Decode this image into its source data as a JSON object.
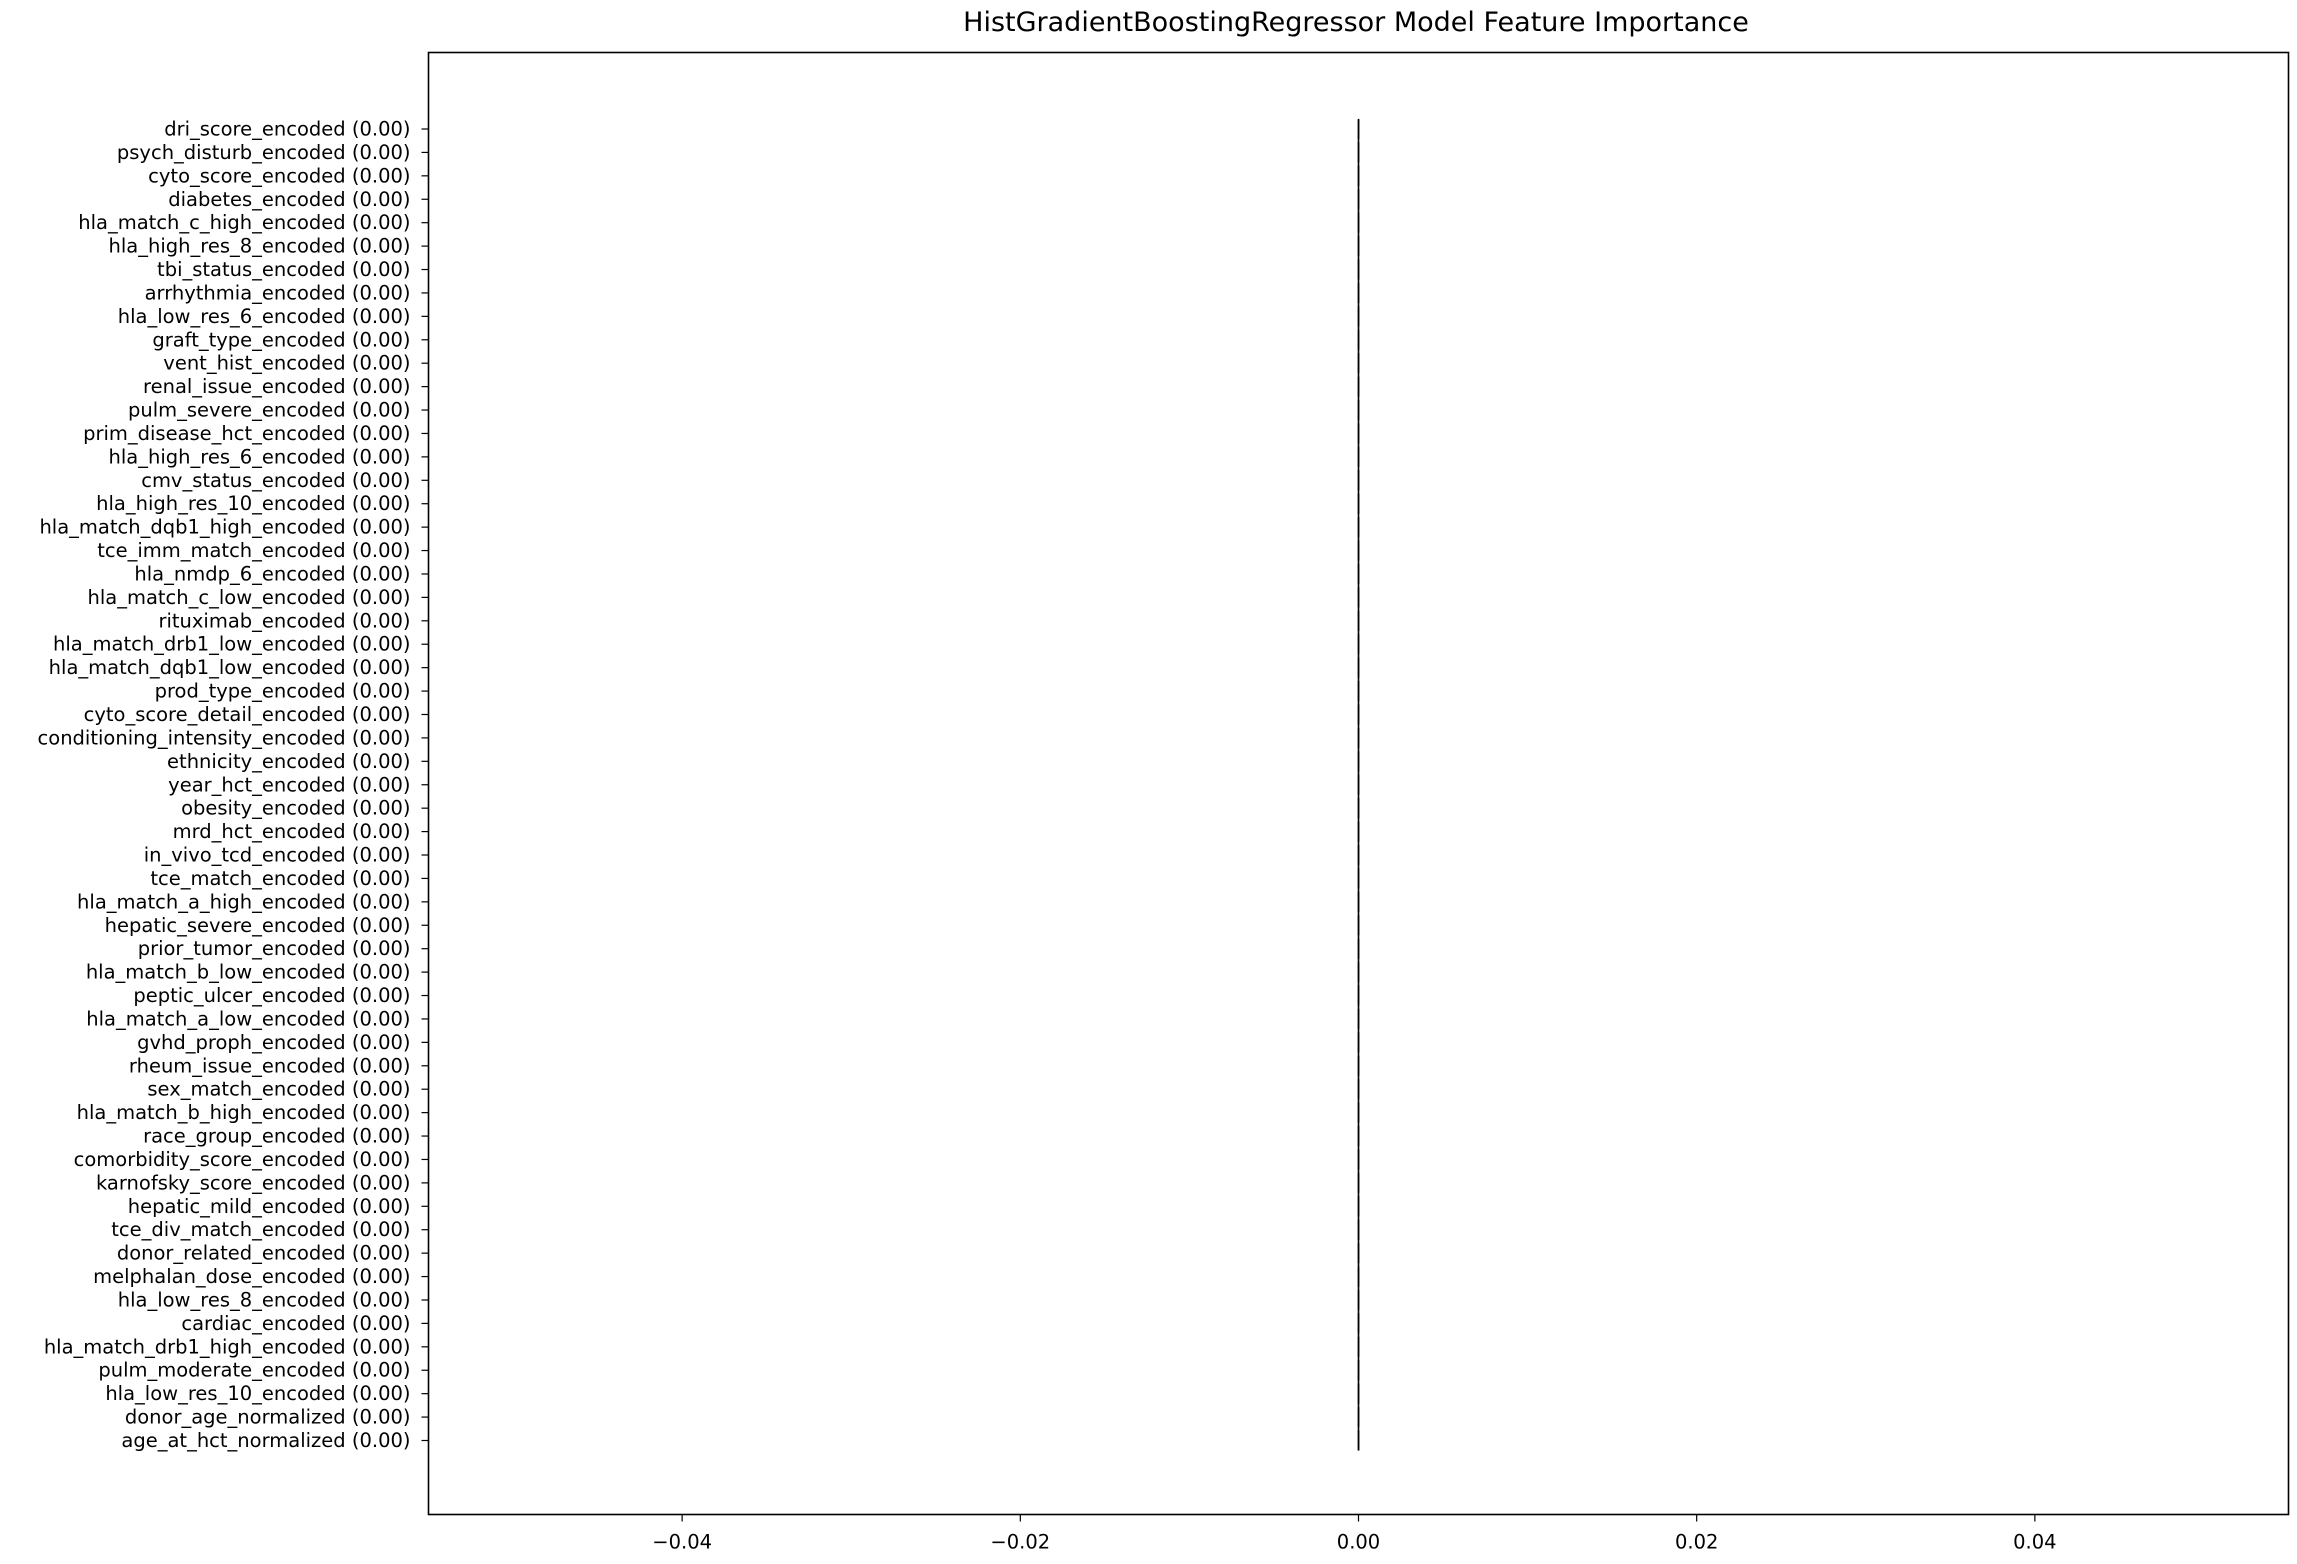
{
  "chart_data": {
    "type": "bar",
    "orientation": "horizontal",
    "title": "HistGradientBoostingRegressor Model Feature Importance",
    "xlabel": "",
    "ylabel": "",
    "xlim": [
      -0.055,
      0.055
    ],
    "xticks": [
      {
        "value": -0.04,
        "label": "−0.04"
      },
      {
        "value": -0.02,
        "label": "−0.02"
      },
      {
        "value": 0.0,
        "label": "0.00"
      },
      {
        "value": 0.02,
        "label": "0.02"
      },
      {
        "value": 0.04,
        "label": "0.04"
      }
    ],
    "grid": false,
    "bar_color": "#1f77b4",
    "edge_color": "#000000",
    "categories": [
      "dri_score_encoded (0.00)",
      "psych_disturb_encoded (0.00)",
      "cyto_score_encoded (0.00)",
      "diabetes_encoded (0.00)",
      "hla_match_c_high_encoded (0.00)",
      "hla_high_res_8_encoded (0.00)",
      "tbi_status_encoded (0.00)",
      "arrhythmia_encoded (0.00)",
      "hla_low_res_6_encoded (0.00)",
      "graft_type_encoded (0.00)",
      "vent_hist_encoded (0.00)",
      "renal_issue_encoded (0.00)",
      "pulm_severe_encoded (0.00)",
      "prim_disease_hct_encoded (0.00)",
      "hla_high_res_6_encoded (0.00)",
      "cmv_status_encoded (0.00)",
      "hla_high_res_10_encoded (0.00)",
      "hla_match_dqb1_high_encoded (0.00)",
      "tce_imm_match_encoded (0.00)",
      "hla_nmdp_6_encoded (0.00)",
      "hla_match_c_low_encoded (0.00)",
      "rituximab_encoded (0.00)",
      "hla_match_drb1_low_encoded (0.00)",
      "hla_match_dqb1_low_encoded (0.00)",
      "prod_type_encoded (0.00)",
      "cyto_score_detail_encoded (0.00)",
      "conditioning_intensity_encoded (0.00)",
      "ethnicity_encoded (0.00)",
      "year_hct_encoded (0.00)",
      "obesity_encoded (0.00)",
      "mrd_hct_encoded (0.00)",
      "in_vivo_tcd_encoded (0.00)",
      "tce_match_encoded (0.00)",
      "hla_match_a_high_encoded (0.00)",
      "hepatic_severe_encoded (0.00)",
      "prior_tumor_encoded (0.00)",
      "hla_match_b_low_encoded (0.00)",
      "peptic_ulcer_encoded (0.00)",
      "hla_match_a_low_encoded (0.00)",
      "gvhd_proph_encoded (0.00)",
      "rheum_issue_encoded (0.00)",
      "sex_match_encoded (0.00)",
      "hla_match_b_high_encoded (0.00)",
      "race_group_encoded (0.00)",
      "comorbidity_score_encoded (0.00)",
      "karnofsky_score_encoded (0.00)",
      "hepatic_mild_encoded (0.00)",
      "tce_div_match_encoded (0.00)",
      "donor_related_encoded (0.00)",
      "melphalan_dose_encoded (0.00)",
      "hla_low_res_8_encoded (0.00)",
      "cardiac_encoded (0.00)",
      "hla_match_drb1_high_encoded (0.00)",
      "pulm_moderate_encoded (0.00)",
      "hla_low_res_10_encoded (0.00)",
      "donor_age_normalized (0.00)",
      "age_at_hct_normalized (0.00)"
    ],
    "values": [
      0,
      0,
      0,
      0,
      0,
      0,
      0,
      0,
      0,
      0,
      0,
      0,
      0,
      0,
      0,
      0,
      0,
      0,
      0,
      0,
      0,
      0,
      0,
      0,
      0,
      0,
      0,
      0,
      0,
      0,
      0,
      0,
      0,
      0,
      0,
      0,
      0,
      0,
      0,
      0,
      0,
      0,
      0,
      0,
      0,
      0,
      0,
      0,
      0,
      0,
      0,
      0,
      0,
      0,
      0,
      0,
      0
    ]
  }
}
